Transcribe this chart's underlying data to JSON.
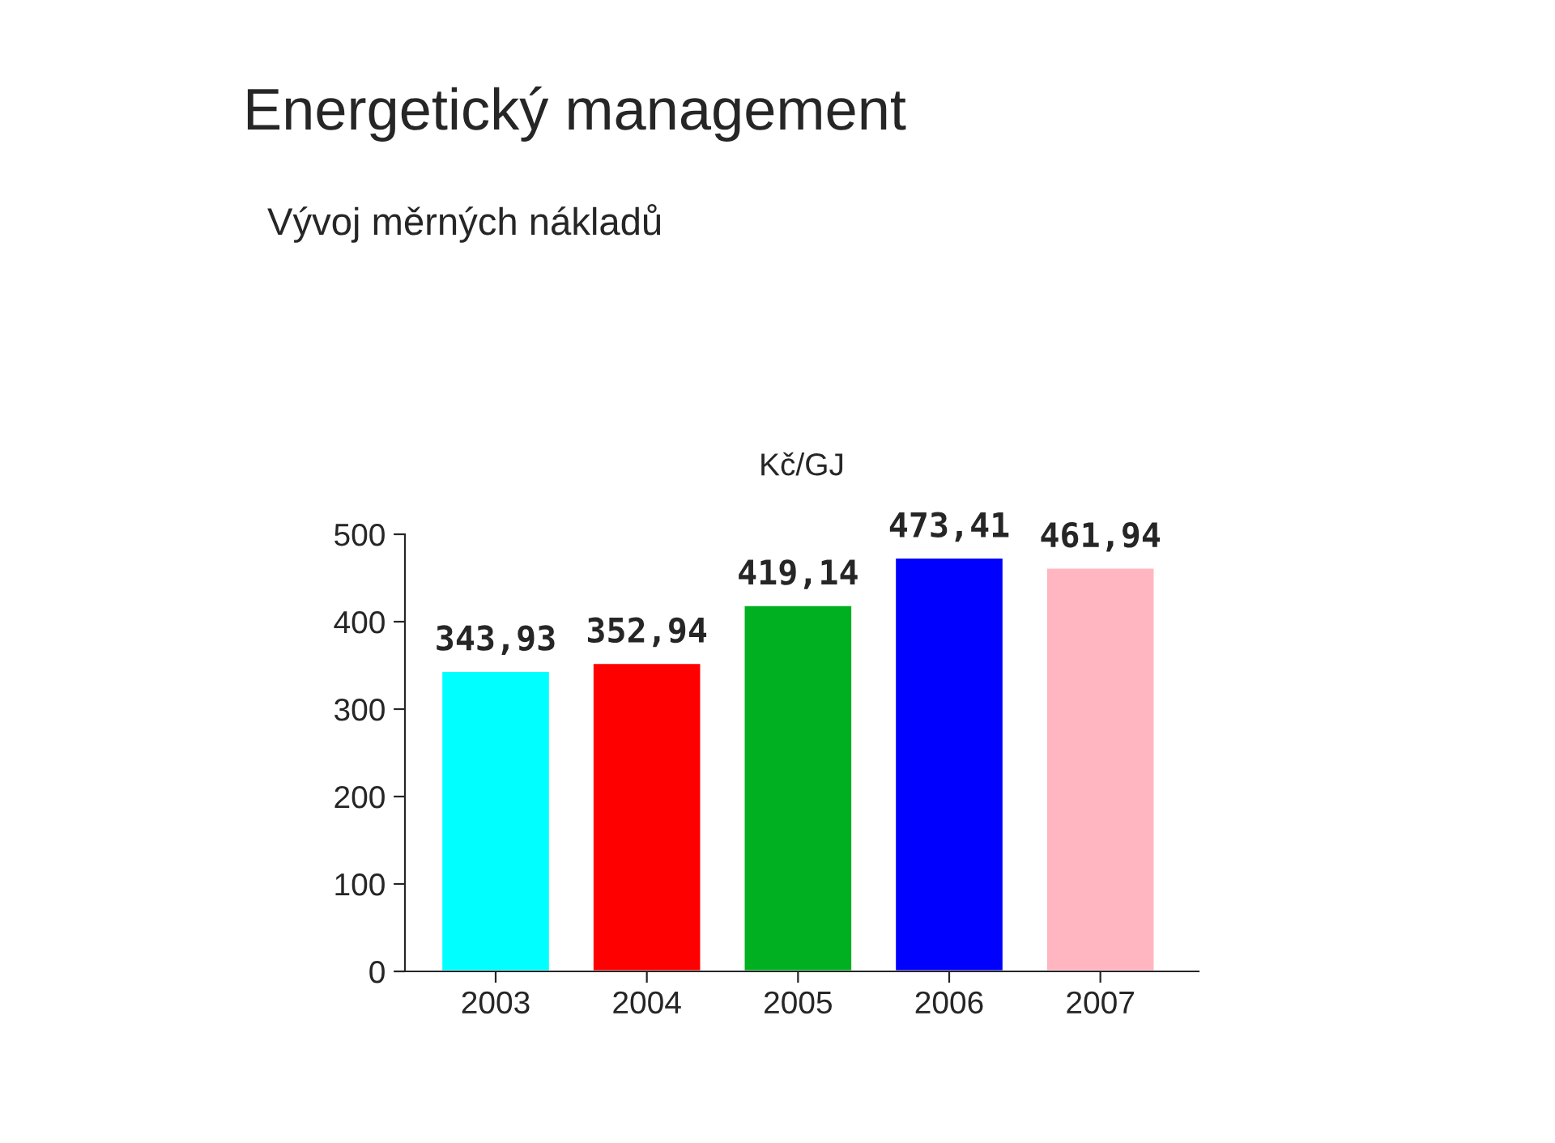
{
  "chart_data": {
    "type": "bar",
    "title": "Energetický management",
    "subtitle": "Vývoj měrných nákladů",
    "ylabel": "Kč/GJ",
    "categories": [
      "2003",
      "2004",
      "2005",
      "2006",
      "2007"
    ],
    "values": [
      343.93,
      352.94,
      419.14,
      473.41,
      461.94
    ],
    "colors": [
      "#00ffff",
      "#ff0000",
      "#00b020",
      "#0000ff",
      "#ffb6c1"
    ],
    "value_labels": [
      "343,93",
      "352,94",
      "419,14",
      "473,41",
      "461,94"
    ],
    "ylim": [
      0,
      500
    ],
    "yticks": [
      0,
      100,
      200,
      300,
      400,
      500
    ],
    "grid": false,
    "legend": false
  }
}
